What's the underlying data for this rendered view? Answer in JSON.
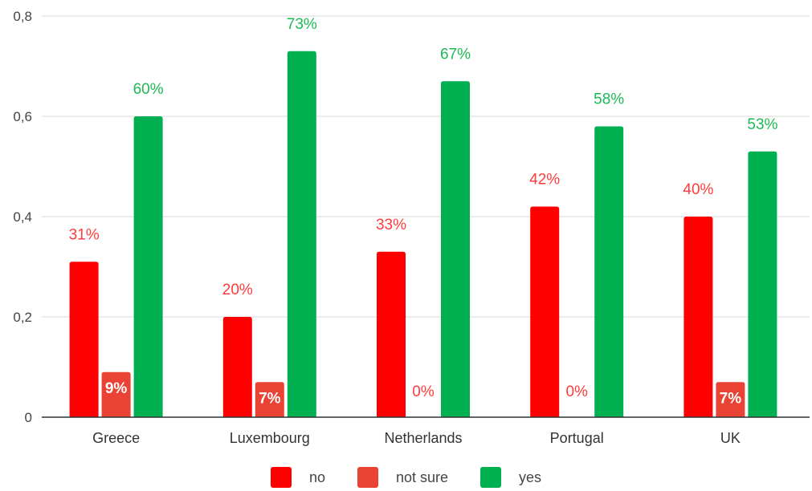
{
  "chart_data": {
    "type": "bar",
    "categories": [
      "Greece",
      "Luxembourg",
      "Netherlands",
      "Portugal",
      "UK"
    ],
    "series": [
      {
        "name": "no",
        "color": "#ff0000",
        "label_color": "#ff3b3b",
        "values": [
          0.31,
          0.2,
          0.33,
          0.42,
          0.4
        ],
        "labels": [
          "31%",
          "20%",
          "33%",
          "42%",
          "40%"
        ]
      },
      {
        "name": "not sure",
        "color": "#ea4335",
        "label_color": "#ff3b3b",
        "values": [
          0.09,
          0.07,
          0.0,
          0.0,
          0.07
        ],
        "labels": [
          "9%",
          "7%",
          "0%",
          "0%",
          "7%"
        ]
      },
      {
        "name": "yes",
        "color": "#00b050",
        "label_color": "#1db954",
        "values": [
          0.6,
          0.73,
          0.67,
          0.58,
          0.53
        ],
        "labels": [
          "60%",
          "73%",
          "67%",
          "58%",
          "53%"
        ]
      }
    ],
    "y_ticks": [
      "0",
      "0,2",
      "0,4",
      "0,6",
      "0,8"
    ],
    "ylim": [
      0,
      0.8
    ],
    "grid": true,
    "legend_position": "bottom"
  }
}
